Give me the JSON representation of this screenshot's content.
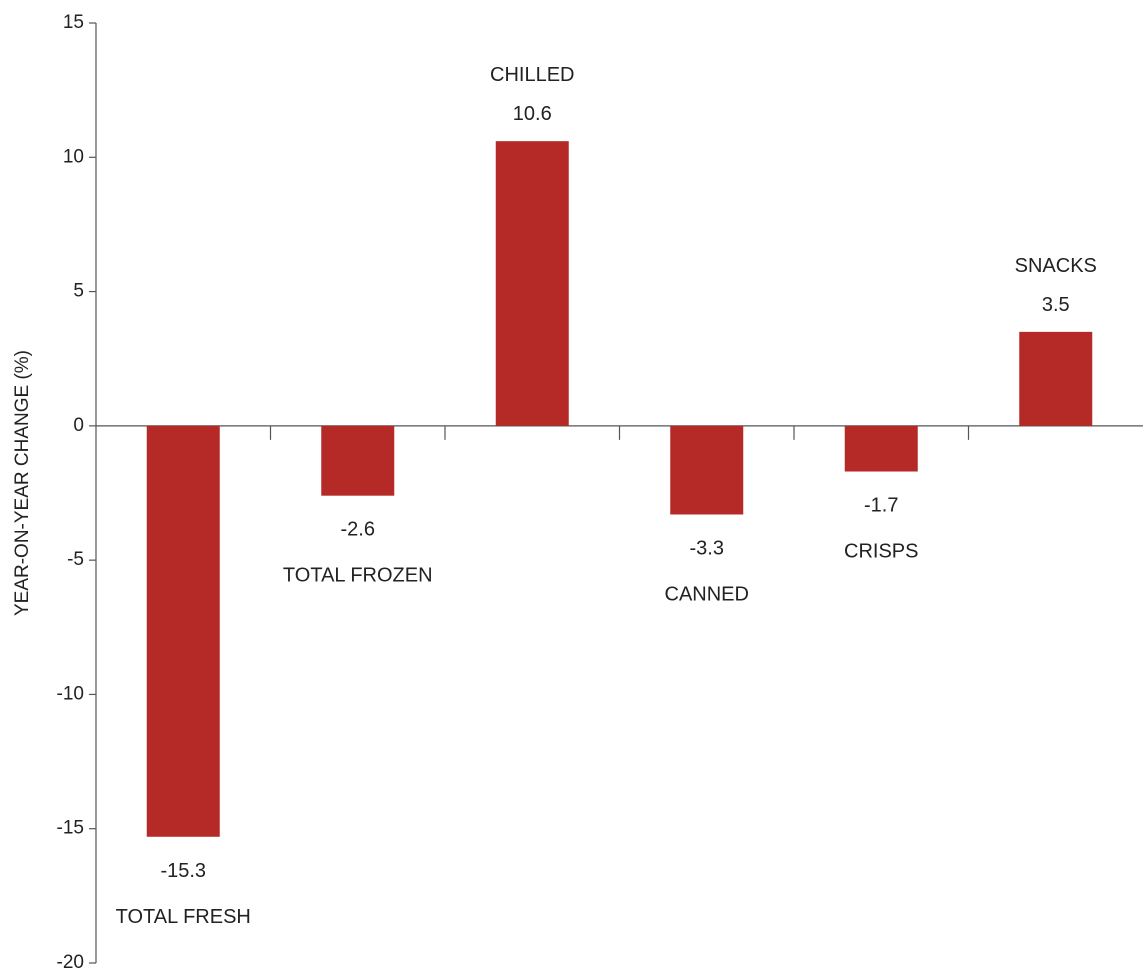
{
  "chart_data": {
    "type": "bar",
    "categories": [
      "TOTAL FRESH",
      "TOTAL FROZEN",
      "CHILLED",
      "CANNED",
      "CRISPS",
      "SNACKS"
    ],
    "values": [
      -15.3,
      -2.6,
      10.6,
      -3.3,
      -1.7,
      3.5
    ],
    "value_labels": [
      "-15.3",
      "-2.6",
      "10.6",
      "-3.3",
      "-1.7",
      "3.5"
    ],
    "ylabel": "YEAR-ON-YEAR CHANGE (%)",
    "xlabel": "",
    "ylim": [
      -20,
      15
    ],
    "yticks": [
      15,
      10,
      5,
      0,
      -5,
      -10,
      -15,
      -20
    ],
    "ytick_labels": [
      "15",
      "10",
      "5",
      "0",
      "-5",
      "-10",
      "-15",
      "-20"
    ],
    "bar_color": "#b52a26",
    "axis_color": "#555555",
    "grid": false,
    "legend": "none"
  }
}
